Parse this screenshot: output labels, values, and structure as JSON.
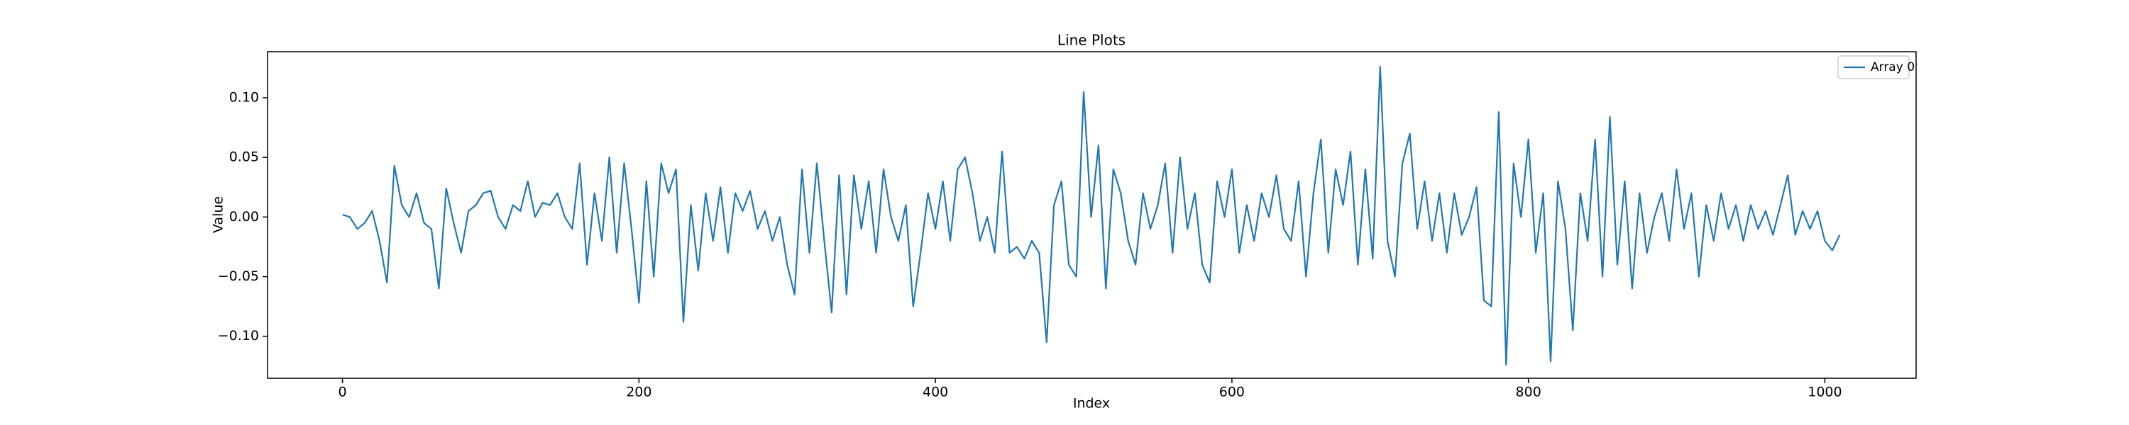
{
  "chart_data": {
    "type": "line",
    "title": "Line Plots",
    "x_label": "Index",
    "y_label": "Value",
    "x": [
      0,
      5,
      10,
      15,
      20,
      25,
      30,
      35,
      40,
      45,
      50,
      55,
      60,
      65,
      70,
      75,
      80,
      85,
      90,
      95,
      100,
      105,
      110,
      115,
      120,
      125,
      130,
      135,
      140,
      145,
      150,
      155,
      160,
      165,
      170,
      175,
      180,
      185,
      190,
      195,
      200,
      205,
      210,
      215,
      220,
      225,
      230,
      235,
      240,
      245,
      250,
      255,
      260,
      265,
      270,
      275,
      280,
      285,
      290,
      295,
      300,
      305,
      310,
      315,
      320,
      325,
      330,
      335,
      340,
      345,
      350,
      355,
      360,
      365,
      370,
      375,
      380,
      385,
      390,
      395,
      400,
      405,
      410,
      415,
      420,
      425,
      430,
      435,
      440,
      445,
      450,
      455,
      460,
      465,
      470,
      475,
      480,
      485,
      490,
      495,
      500,
      505,
      510,
      515,
      520,
      525,
      530,
      535,
      540,
      545,
      550,
      555,
      560,
      565,
      570,
      575,
      580,
      585,
      590,
      595,
      600,
      605,
      610,
      615,
      620,
      625,
      630,
      635,
      640,
      645,
      650,
      655,
      660,
      665,
      670,
      675,
      680,
      685,
      690,
      695,
      700,
      705,
      710,
      715,
      720,
      725,
      730,
      735,
      740,
      745,
      750,
      755,
      760,
      765,
      770,
      775,
      780,
      785,
      790,
      795,
      800,
      805,
      810,
      815,
      820,
      825,
      830,
      835,
      840,
      845,
      850,
      855,
      860,
      865,
      870,
      875,
      880,
      885,
      890,
      895,
      900,
      905,
      910,
      915,
      920,
      925,
      930,
      935,
      940,
      945,
      950,
      955,
      960,
      965,
      970,
      975,
      980,
      985,
      990,
      995,
      1000,
      1005,
      1010
    ],
    "series": [
      {
        "name": "Array 0",
        "color": "#1f77b4",
        "values": [
          0.002,
          0.0,
          -0.01,
          -0.005,
          0.005,
          -0.02,
          -0.055,
          0.043,
          0.01,
          0.0,
          0.02,
          -0.005,
          -0.01,
          -0.06,
          0.024,
          -0.005,
          -0.03,
          0.005,
          0.01,
          0.02,
          0.022,
          0.0,
          -0.01,
          0.01,
          0.005,
          0.03,
          0.0,
          0.012,
          0.01,
          0.02,
          0.0,
          -0.01,
          0.045,
          -0.04,
          0.02,
          -0.02,
          0.05,
          -0.03,
          0.045,
          -0.01,
          -0.072,
          0.03,
          -0.05,
          0.045,
          0.02,
          0.04,
          -0.088,
          0.01,
          -0.045,
          0.02,
          -0.02,
          0.025,
          -0.03,
          0.02,
          0.005,
          0.022,
          -0.01,
          0.005,
          -0.02,
          0.0,
          -0.04,
          -0.065,
          0.04,
          -0.03,
          0.045,
          -0.02,
          -0.08,
          0.035,
          -0.065,
          0.035,
          -0.01,
          0.03,
          -0.03,
          0.04,
          0.0,
          -0.02,
          0.01,
          -0.075,
          -0.03,
          0.02,
          -0.01,
          0.03,
          -0.02,
          0.04,
          0.05,
          0.02,
          -0.02,
          0.0,
          -0.03,
          0.055,
          -0.03,
          -0.025,
          -0.035,
          -0.02,
          -0.03,
          -0.105,
          0.01,
          0.03,
          -0.04,
          -0.05,
          0.105,
          0.0,
          0.06,
          -0.06,
          0.04,
          0.02,
          -0.02,
          -0.04,
          0.02,
          -0.01,
          0.01,
          0.045,
          -0.03,
          0.05,
          -0.01,
          0.02,
          -0.04,
          -0.055,
          0.03,
          0.0,
          0.04,
          -0.03,
          0.01,
          -0.02,
          0.02,
          0.0,
          0.035,
          -0.01,
          -0.02,
          0.03,
          -0.05,
          0.02,
          0.065,
          -0.03,
          0.04,
          0.01,
          0.055,
          -0.04,
          0.04,
          -0.035,
          0.126,
          -0.02,
          -0.05,
          0.045,
          0.07,
          -0.01,
          0.03,
          -0.02,
          0.02,
          -0.03,
          0.02,
          -0.015,
          0.0,
          0.025,
          -0.07,
          -0.075,
          0.088,
          -0.124,
          0.045,
          0.0,
          0.065,
          -0.03,
          0.02,
          -0.121,
          0.03,
          -0.01,
          -0.095,
          0.02,
          -0.02,
          0.065,
          -0.05,
          0.084,
          -0.04,
          0.03,
          -0.06,
          0.02,
          -0.03,
          0.0,
          0.02,
          -0.02,
          0.04,
          -0.01,
          0.02,
          -0.05,
          0.01,
          -0.02,
          0.02,
          -0.01,
          0.01,
          -0.02,
          0.01,
          -0.01,
          0.005,
          -0.015,
          0.01,
          0.035,
          -0.015,
          0.005,
          -0.01,
          0.005,
          -0.02,
          -0.028,
          -0.015
        ]
      }
    ],
    "xlim": [
      -50.55,
      1061.55
    ],
    "xticks": [
      0,
      200,
      400,
      600,
      800,
      1000
    ],
    "ylim": [
      -0.1352,
      0.1386
    ],
    "yticks": [
      {
        "value": -0.1,
        "label": "−0.10"
      },
      {
        "value": -0.05,
        "label": "−0.05"
      },
      {
        "value": 0,
        "label": "0.00"
      },
      {
        "value": 0.05,
        "label": "0.05"
      },
      {
        "value": 0.1,
        "label": "0.10"
      }
    ],
    "grid": false,
    "legend": "upper right"
  }
}
